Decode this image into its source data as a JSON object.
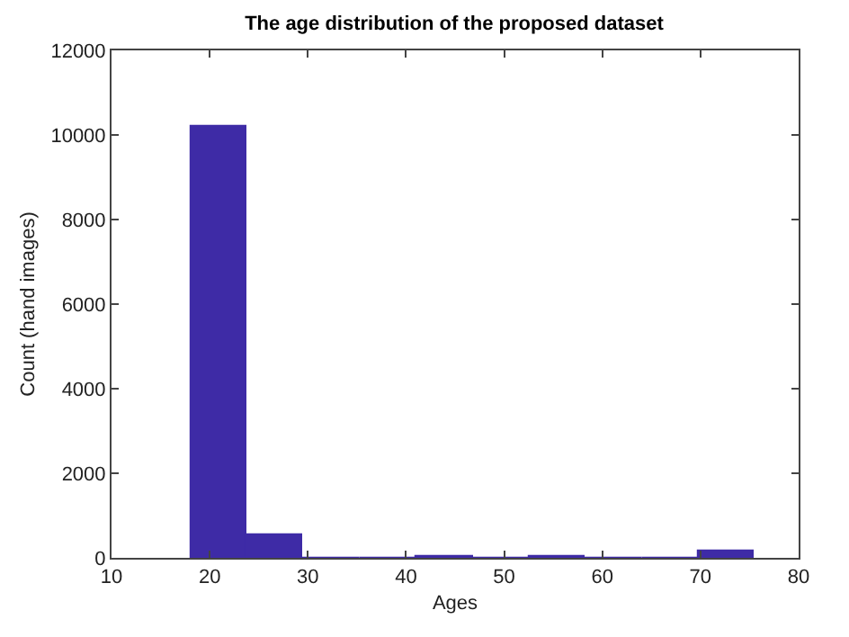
{
  "chart_data": {
    "type": "histogram",
    "title": "The age distribution of the proposed dataset",
    "xlabel": "Ages",
    "ylabel": "Count (hand images)",
    "bins": [
      18,
      23.75,
      29.5,
      35.25,
      41,
      46.75,
      52.5,
      58.25,
      64,
      69.75,
      75.5
    ],
    "values": [
      10200,
      550,
      10,
      10,
      50,
      0,
      40,
      0,
      0,
      150
    ],
    "color": "#3e2ba6",
    "xlim": [
      10,
      80
    ],
    "xticks": [
      10,
      20,
      30,
      40,
      50,
      60,
      70,
      80
    ],
    "ylim": [
      0,
      12000
    ],
    "yticks": [
      0,
      2000,
      4000,
      6000,
      8000,
      10000,
      12000
    ],
    "grid": false,
    "legend": false
  }
}
